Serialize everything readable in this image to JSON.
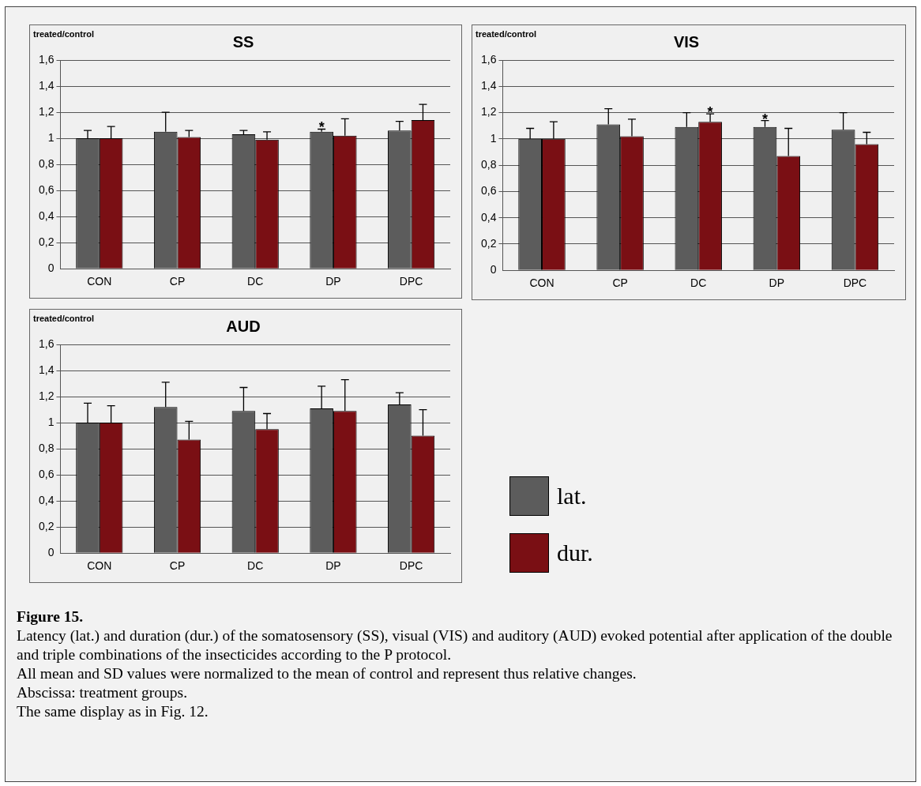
{
  "chart_data": [
    {
      "type": "bar",
      "title": "SS",
      "ylabel": "treated/control",
      "categories": [
        "CON",
        "CP",
        "DC",
        "DP",
        "DPC"
      ],
      "series": [
        {
          "color": "#5c5c5c",
          "values": [
            1.0,
            1.05,
            1.03,
            1.05,
            1.06
          ],
          "errors": [
            [
              1.0,
              1.06
            ],
            [
              1.05,
              1.2
            ],
            [
              1.03,
              1.06
            ],
            [
              1.05,
              1.07
            ],
            [
              1.06,
              1.13
            ]
          ]
        },
        {
          "color": "#7a0f14",
          "values": [
            1.0,
            1.01,
            0.99,
            1.02,
            1.14
          ],
          "errors": [
            [
              1.0,
              1.09
            ],
            [
              1.01,
              1.06
            ],
            [
              0.99,
              1.05
            ],
            [
              1.02,
              1.15
            ],
            [
              1.14,
              1.26
            ]
          ]
        }
      ],
      "ylim": [
        0,
        1.6
      ],
      "yticks": [
        {
          "value": 0,
          "label": "0"
        },
        {
          "value": 0.2,
          "label": "0,2"
        },
        {
          "value": 0.4,
          "label": "0,4"
        },
        {
          "value": 0.6,
          "label": "0,6"
        },
        {
          "value": 0.8,
          "label": "0,8"
        },
        {
          "value": 1,
          "label": "1"
        },
        {
          "value": 1.2,
          "label": "1,2"
        },
        {
          "value": 1.4,
          "label": "1,4"
        },
        {
          "value": 1.6,
          "label": "1,6"
        }
      ],
      "grid": "y",
      "annotations": [
        {
          "text": "*",
          "x": "DP",
          "y": 1.05
        }
      ]
    },
    {
      "type": "bar",
      "title": "VIS",
      "ylabel": "treated/control",
      "categories": [
        "CON",
        "CP",
        "DC",
        "DP",
        "DPC"
      ],
      "series": [
        {
          "color": "#5c5c5c",
          "values": [
            1.0,
            1.11,
            1.09,
            1.09,
            1.07
          ],
          "errors": [
            [
              1.0,
              1.08
            ],
            [
              1.11,
              1.23
            ],
            [
              1.09,
              1.2
            ],
            [
              1.09,
              1.14
            ],
            [
              1.07,
              1.2
            ]
          ]
        },
        {
          "color": "#7a0f14",
          "values": [
            1.0,
            1.02,
            1.13,
            0.87,
            0.96
          ],
          "errors": [
            [
              1.0,
              1.13
            ],
            [
              1.02,
              1.15
            ],
            [
              1.13,
              1.19
            ],
            [
              0.87,
              1.08
            ],
            [
              0.96,
              1.05
            ]
          ]
        }
      ],
      "ylim": [
        0,
        1.6
      ],
      "yticks": [
        {
          "value": 0,
          "label": "0"
        },
        {
          "value": 0.2,
          "label": "0,2"
        },
        {
          "value": 0.4,
          "label": "0,4"
        },
        {
          "value": 0.6,
          "label": "0,6"
        },
        {
          "value": 0.8,
          "label": "0,8"
        },
        {
          "value": 1,
          "label": "1"
        },
        {
          "value": 1.2,
          "label": "1,2"
        },
        {
          "value": 1.4,
          "label": "1,4"
        },
        {
          "value": 1.6,
          "label": "1,6"
        }
      ],
      "grid": "y",
      "annotations": [
        {
          "text": "*",
          "x": "DC",
          "y": 1.13
        },
        {
          "text": "*",
          "x": "DP",
          "y": 1.09
        }
      ]
    },
    {
      "type": "bar",
      "title": "AUD",
      "ylabel": "treated/control",
      "categories": [
        "CON",
        "CP",
        "DC",
        "DP",
        "DPC"
      ],
      "series": [
        {
          "name": "lat.",
          "color": "#5c5c5c",
          "values": [
            1.0,
            1.12,
            1.09,
            1.11,
            1.14
          ],
          "errors": [
            [
              1.0,
              1.15
            ],
            [
              1.12,
              1.31
            ],
            [
              1.09,
              1.27
            ],
            [
              1.11,
              1.28
            ],
            [
              1.14,
              1.23
            ]
          ]
        },
        {
          "name": "dur.",
          "color": "#7a0f14",
          "values": [
            1.0,
            0.87,
            0.95,
            1.09,
            0.9
          ],
          "errors": [
            [
              1.0,
              1.13
            ],
            [
              0.87,
              1.01
            ],
            [
              0.95,
              1.07
            ],
            [
              1.09,
              1.33
            ],
            [
              0.9,
              1.1
            ]
          ]
        }
      ],
      "ylim": [
        0,
        1.6
      ],
      "yticks": [
        {
          "value": 0,
          "label": "0"
        },
        {
          "value": 0.2,
          "label": "0,2"
        },
        {
          "value": 0.4,
          "label": "0,4"
        },
        {
          "value": 0.6,
          "label": "0,6"
        },
        {
          "value": 0.8,
          "label": "0,8"
        },
        {
          "value": 1,
          "label": "1"
        },
        {
          "value": 1.2,
          "label": "1,2"
        },
        {
          "value": 1.4,
          "label": "1,4"
        },
        {
          "value": 1.6,
          "label": "1,6"
        }
      ],
      "grid": "y",
      "legend": "right",
      "annotations": [
        "Figure 15.",
        "Latency (lat.) and duration (dur.) of the somatosensory (SS), visual (VIS) and auditory (AUD) evoked potential after application of the double and triple combinations of the insecticides according to the P protocol.",
        "All mean and SD values were normalized to the mean of control and represent thus relative changes.",
        "Abscissa: treatment groups.",
        "The same display as in Fig. 12."
      ]
    }
  ]
}
